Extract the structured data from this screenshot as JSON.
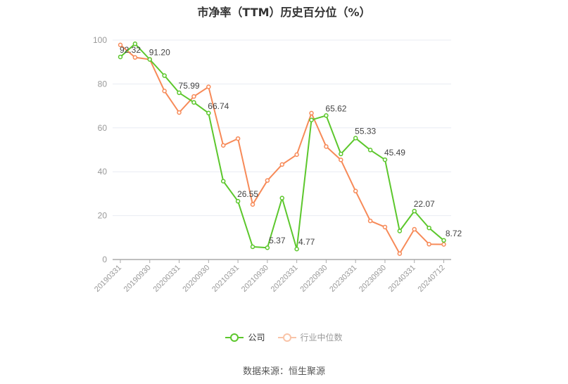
{
  "header": {
    "title": "市净率（TTM）历史百分位（%）"
  },
  "legend": [
    {
      "label": "公司",
      "color": "#5cc72c",
      "text_color": "#333333"
    },
    {
      "label": "行业中位数",
      "color": "#f9c4a8",
      "text_color": "#999999"
    }
  ],
  "footer": {
    "source": "数据来源：恒生聚源"
  },
  "colors": {
    "company": "#5cc72c",
    "industry": "#f78a58",
    "grid": "#e8ecf3",
    "axis": "#aaaaaa",
    "tick_text": "#999999",
    "label_text": "#444444"
  },
  "chart_data": {
    "type": "line",
    "title": "市净率（TTM）历史百分位（%）",
    "xlabel": "",
    "ylabel": "",
    "ylim": [
      0,
      100
    ],
    "yticks": [
      0,
      20,
      40,
      60,
      80,
      100
    ],
    "grid": true,
    "legend_position": "bottom",
    "x": [
      "20190331",
      "20190630",
      "20190930",
      "20191231",
      "20200331",
      "20200630",
      "20200930",
      "20201231",
      "20210331",
      "20210630",
      "20210930",
      "20211231",
      "20220331",
      "20220630",
      "20220930",
      "20221231",
      "20230331",
      "20230630",
      "20230930",
      "20231231",
      "20240331",
      "20240630",
      "20240712"
    ],
    "xtick_labels": [
      "20190331",
      "20190930",
      "20200331",
      "20200930",
      "20210331",
      "20210930",
      "20220331",
      "20220930",
      "20230331",
      "20230930",
      "20240331",
      "20240712"
    ],
    "series": [
      {
        "name": "公司",
        "values": [
          92.32,
          98.3,
          91.2,
          83.8,
          75.99,
          71.6,
          66.74,
          35.7,
          26.55,
          5.8,
          5.37,
          28.0,
          4.77,
          63.6,
          65.62,
          48.1,
          55.33,
          49.9,
          45.49,
          13.0,
          22.07,
          14.4,
          8.72
        ],
        "labeled_points": {
          "0": "92.32",
          "2": "91.20",
          "4": "75.99",
          "6": "66.74",
          "8": "26.55",
          "10": "5.37",
          "12": "4.77",
          "14": "65.62",
          "16": "55.33",
          "18": "45.49",
          "20": "22.07",
          "22": "8.72"
        }
      },
      {
        "name": "行业中位数",
        "values": [
          97.8,
          92.1,
          91.2,
          76.8,
          67.0,
          74.3,
          78.7,
          52.0,
          55.1,
          25.1,
          36.0,
          43.3,
          47.8,
          66.7,
          51.5,
          45.4,
          31.2,
          17.6,
          14.8,
          2.7,
          13.8,
          7.0,
          6.9
        ]
      }
    ]
  }
}
